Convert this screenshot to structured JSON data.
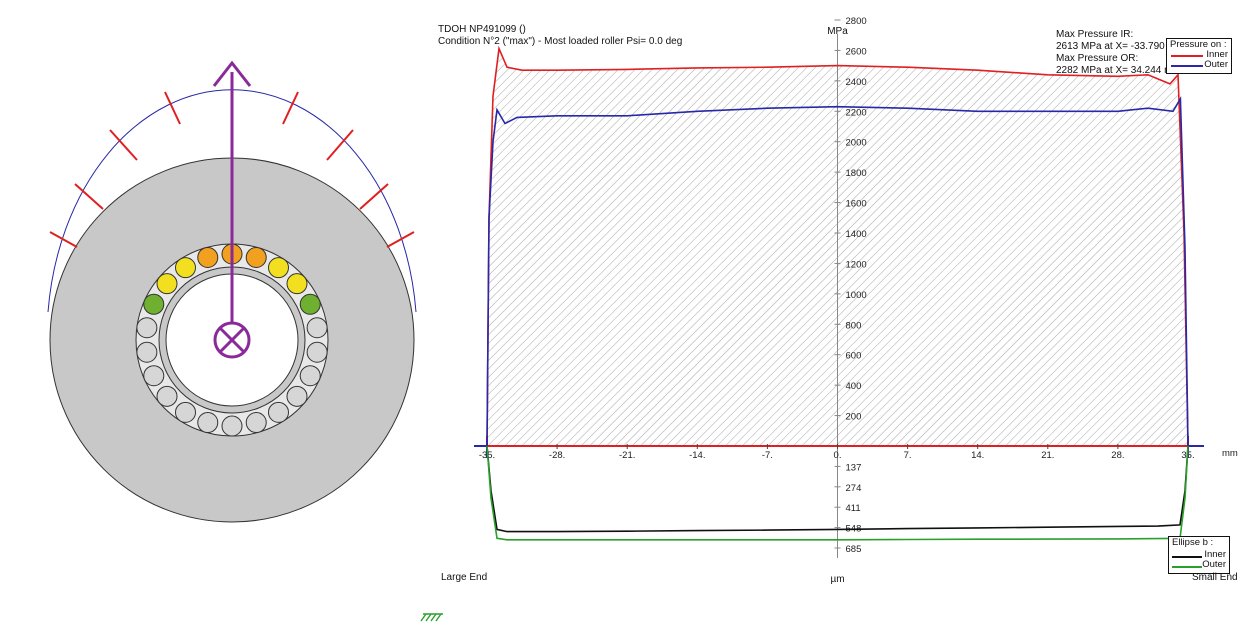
{
  "header": {
    "title": "TDOH NP491099 ()",
    "condition": "Condition N°2 (\"max\") - Most loaded roller Psi= 0.0 deg"
  },
  "info": {
    "max_ir_label": "Max Pressure IR:",
    "max_ir_value": "2613 MPa at X= -33.790 mm",
    "max_or_label": "Max Pressure OR:",
    "max_or_value": "2282 MPa at X= 34.244 mm"
  },
  "legend_pressure": {
    "title": "Pressure on :",
    "inner": "Inner",
    "outer": "Outer"
  },
  "legend_ellipse": {
    "title": "Ellipse b :",
    "inner": "Inner",
    "outer": "Outer"
  },
  "labels": {
    "large_end": "Large End",
    "small_end": "Small End"
  },
  "colors": {
    "inner": "#e02020",
    "outer": "#2828a8",
    "ellipse_inner": "#101010",
    "ellipse_outer": "#2aa02a",
    "load_arrow": "#8a2a9a",
    "ring": "#c8c8c8"
  },
  "bearing": {
    "roller_colors_top_to_bottom": [
      "orange",
      "orange",
      "orange",
      "yellow",
      "yellow",
      "yellow",
      "yellow",
      "green",
      "gray"
    ]
  },
  "chart_data": {
    "type": "area",
    "xlabel": "mm",
    "ylabel": "MPa",
    "ylabel_bottom": "µm",
    "xlim": [
      -35,
      35
    ],
    "ylim": [
      0,
      2800
    ],
    "ylim_bottom": [
      0,
      685
    ],
    "x_ticks": [
      "-35.",
      "-28.",
      "-21.",
      "-14.",
      "-7.",
      "0.",
      "7.",
      "14.",
      "21.",
      "28.",
      "35."
    ],
    "y_ticks": [
      "200",
      "400",
      "600",
      "800",
      "1000",
      "1200",
      "1400",
      "1600",
      "1800",
      "2000",
      "2200",
      "2400",
      "2600",
      "2800"
    ],
    "y_ticks_bottom": [
      "137",
      "274",
      "411",
      "548",
      "685"
    ],
    "series": [
      {
        "name": "Inner",
        "x": [
          -35,
          -34.8,
          -34.4,
          -33.8,
          -33.0,
          -31.5,
          -28,
          -21,
          -14,
          -7,
          0,
          7,
          14,
          21,
          28,
          31,
          33.2,
          34.0,
          34.6,
          35
        ],
        "y": [
          0,
          1500,
          2300,
          2613,
          2490,
          2470,
          2470,
          2475,
          2485,
          2490,
          2500,
          2490,
          2470,
          2440,
          2430,
          2440,
          2380,
          2440,
          1400,
          0
        ]
      },
      {
        "name": "Outer",
        "x": [
          -35,
          -34.8,
          -34.4,
          -34.0,
          -33.2,
          -32,
          -28,
          -21,
          -14,
          -7,
          0,
          7,
          14,
          21,
          28,
          31,
          33.5,
          34.244,
          34.7,
          35
        ],
        "y": [
          0,
          1500,
          2000,
          2210,
          2120,
          2160,
          2170,
          2170,
          2200,
          2220,
          2230,
          2220,
          2200,
          2200,
          2200,
          2220,
          2200,
          2282,
          1300,
          0
        ]
      }
    ],
    "ellipse_series": [
      {
        "name": "Inner",
        "x": [
          -35,
          -34.6,
          -34.0,
          -33.0,
          -28,
          -21,
          -14,
          -7,
          0,
          7,
          14,
          21,
          28,
          32,
          34.2,
          34.7,
          35
        ],
        "y": [
          0,
          300,
          560,
          575,
          575,
          572,
          568,
          565,
          560,
          555,
          550,
          545,
          540,
          538,
          530,
          300,
          0
        ]
      },
      {
        "name": "Outer",
        "x": [
          -35,
          -34.6,
          -34.0,
          -33.0,
          -28,
          -21,
          -14,
          -7,
          0,
          7,
          14,
          21,
          28,
          32,
          34.2,
          34.7,
          35
        ],
        "y": [
          0,
          350,
          620,
          630,
          630,
          630,
          630,
          630,
          630,
          628,
          626,
          625,
          624,
          622,
          620,
          350,
          0
        ]
      }
    ]
  }
}
